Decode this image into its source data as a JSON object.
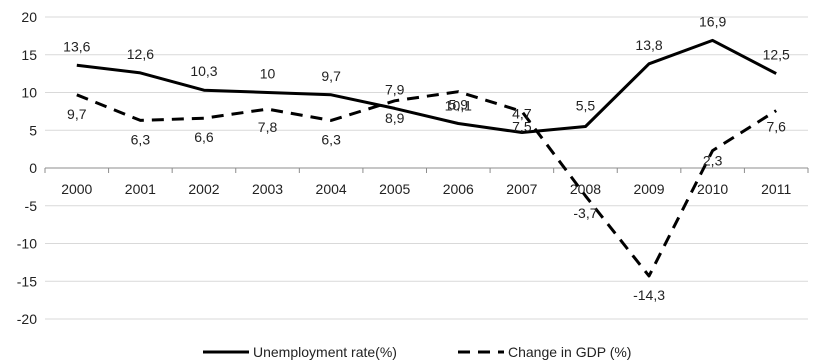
{
  "chart_data": {
    "type": "line",
    "categories": [
      "2000",
      "2001",
      "2002",
      "2003",
      "2004",
      "2005",
      "2006",
      "2007",
      "2008",
      "2009",
      "2010",
      "2011"
    ],
    "ylim": [
      -20,
      20
    ],
    "yticks": [
      20,
      15,
      10,
      5,
      0,
      -5,
      -10,
      -15,
      -20
    ],
    "grid": "horizontal",
    "legend_position": "bottom",
    "series": [
      {
        "name": "Unemployment rate(%)",
        "style": "solid",
        "color": "#000000",
        "values": [
          13.6,
          12.6,
          10.3,
          10,
          9.7,
          7.9,
          5.9,
          4.7,
          5.5,
          13.8,
          16.9,
          12.5
        ],
        "labels": [
          "13,6",
          "12,6",
          "10,3",
          "10",
          "9,7",
          "7,9",
          "5,9",
          "4,7",
          "5,5",
          "13,8",
          "16,9",
          "12,5"
        ]
      },
      {
        "name": "Change in GDP (%)",
        "style": "dashed",
        "color": "#000000",
        "values": [
          9.7,
          6.3,
          6.6,
          7.8,
          6.3,
          8.9,
          10.1,
          7.5,
          -3.7,
          -14.3,
          2.3,
          7.6
        ],
        "labels": [
          "9,7",
          "6,3",
          "6,6",
          "7,8",
          "6,3",
          "8,9",
          "10,1",
          "7,5",
          "-3,7",
          "-14,3",
          "2,3",
          "7,6"
        ]
      }
    ]
  }
}
